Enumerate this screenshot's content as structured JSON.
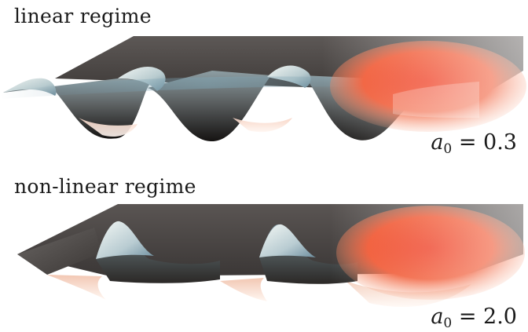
{
  "panels": [
    {
      "title": "linear regime",
      "param": {
        "symbol": "a",
        "subscript": "0",
        "relation": " = ",
        "value": "0.3"
      }
    },
    {
      "title": "non-linear regime",
      "param": {
        "symbol": "a",
        "subscript": "0",
        "relation": " = ",
        "value": "2.0"
      }
    }
  ],
  "colors": {
    "sheet": "#4f4b49",
    "sheet_dark": "#262322",
    "crest": "#dce6e3",
    "blue_tint": "#7f9fae",
    "pink_underside": "#f3c2ae",
    "pulse_red": "#ee3b1f",
    "pulse_orange": "#f7915f"
  }
}
